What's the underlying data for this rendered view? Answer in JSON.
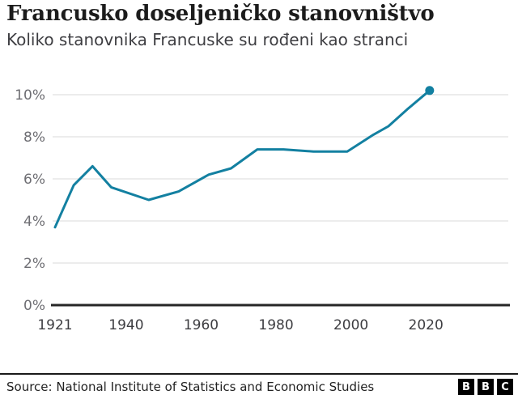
{
  "chart_data": {
    "type": "line",
    "title": "Francusko doseljeničko stanovništvo",
    "subtitle": "Koliko stanovnika Francuske su rođeni kao stranci",
    "x": [
      1921,
      1926,
      1931,
      1936,
      1946,
      1954,
      1962,
      1968,
      1975,
      1982,
      1990,
      1999,
      2006,
      2010,
      2015,
      2021
    ],
    "values": [
      3.7,
      5.7,
      6.6,
      5.6,
      5.0,
      5.4,
      6.2,
      6.5,
      7.4,
      7.4,
      7.3,
      7.3,
      8.1,
      8.5,
      9.3,
      10.2
    ],
    "xlabel": "",
    "ylabel": "",
    "xlim": [
      1921,
      2042
    ],
    "ylim": [
      0,
      10
    ],
    "x_ticks": [
      1921,
      1940,
      1960,
      1980,
      2000,
      2020
    ],
    "y_ticks": [
      0,
      2,
      4,
      6,
      8,
      10
    ],
    "y_tick_suffix": "%",
    "grid": "horizontal",
    "legend": "none",
    "line_color": "#1380A1",
    "end_dot": true
  },
  "footer": {
    "source": "Source: National Institute of Statistics and Economic Studies",
    "logo": [
      "B",
      "B",
      "C"
    ]
  },
  "colors": {
    "accent_line": "#1380A1",
    "gridline": "#e6e6e6",
    "axis_baseline": "#262626",
    "y_tick_text": "#6e6e73",
    "x_tick_text": "#3d3d41",
    "title_text": "#1c1c1c",
    "subtitle_text": "#3e3e42",
    "divider": "#1a1a1a",
    "logo_bg": "#000000"
  }
}
